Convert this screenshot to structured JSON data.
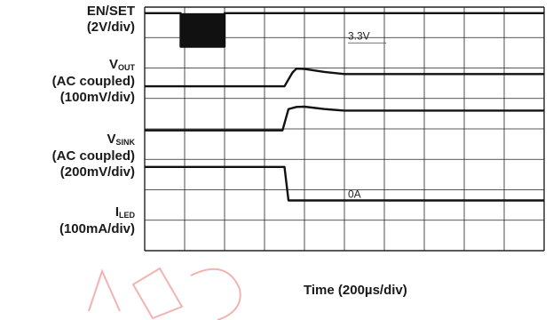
{
  "chart_data": {
    "type": "line",
    "title": "",
    "xlabel": "Time (200µs/div)",
    "x_divisions": 10,
    "y_divisions": 8,
    "grid": true,
    "channels": [
      {
        "main": "EN/SET",
        "sub": "",
        "extra": [],
        "scale": "(2V/div)"
      },
      {
        "main": "V",
        "sub": "OUT",
        "extra": [
          "(AC coupled)"
        ],
        "scale": "(100mV/div)"
      },
      {
        "main": "V",
        "sub": "SINK",
        "extra": [
          "(AC coupled)"
        ],
        "scale": "(200mV/div)"
      },
      {
        "main": "I",
        "sub": "LED",
        "extra": [],
        "scale": "(100mA/div)"
      }
    ],
    "annotations": [
      {
        "text": "3.3V"
      },
      {
        "text": "0A"
      }
    ],
    "series": [
      {
        "name": "EN/SET",
        "x": [
          0,
          0.9,
          0.9,
          2.0,
          2.0,
          10
        ],
        "y": [
          7.8,
          7.8,
          6.7,
          6.7,
          7.8,
          7.8
        ]
      },
      {
        "name": "V_OUT",
        "x": [
          0,
          3.5,
          3.7,
          3.8,
          4.0,
          4.5,
          5.0,
          10
        ],
        "y": [
          5.4,
          5.4,
          5.85,
          5.98,
          5.97,
          5.87,
          5.8,
          5.8
        ]
      },
      {
        "name": "V_SINK",
        "x": [
          0,
          3.45,
          3.6,
          3.8,
          4.0,
          4.5,
          5.0,
          10
        ],
        "y": [
          3.95,
          3.95,
          4.65,
          4.72,
          4.73,
          4.65,
          4.6,
          4.6
        ]
      },
      {
        "name": "I_LED",
        "x": [
          0,
          3.5,
          3.6,
          10
        ],
        "y": [
          2.75,
          2.75,
          1.65,
          1.65
        ]
      }
    ]
  }
}
